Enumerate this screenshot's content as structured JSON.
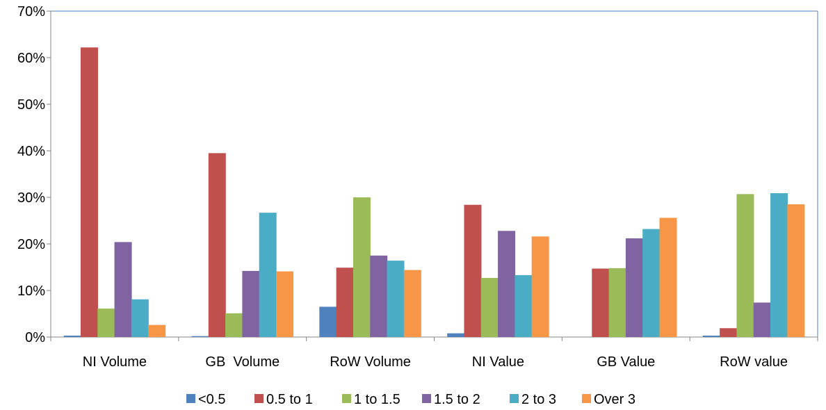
{
  "chart_data": {
    "type": "bar",
    "categories": [
      "NI Volume",
      "GB  Volume",
      "RoW Volume",
      "NI Value",
      "GB Value",
      "RoW value"
    ],
    "y_tick_labels": [
      "0%",
      "10%",
      "20%",
      "30%",
      "40%",
      "50%",
      "60%",
      "70%"
    ],
    "y_ticks": [
      0,
      10,
      20,
      30,
      40,
      50,
      60,
      70
    ],
    "ylim": [
      0,
      70
    ],
    "y_unit": "%",
    "grid": false,
    "legend_position": "bottom",
    "series": [
      {
        "name": "<0.5",
        "color": "#4F81BD",
        "values": [
          0.3,
          0.2,
          6.5,
          0.8,
          0.0,
          0.3
        ]
      },
      {
        "name": "0.5 to 1",
        "color": "#C0504D",
        "values": [
          62.2,
          39.5,
          14.9,
          28.4,
          14.7,
          1.9
        ]
      },
      {
        "name": "1 to 1.5",
        "color": "#9BBB59",
        "values": [
          6.1,
          5.1,
          30.0,
          12.7,
          14.8,
          30.7
        ]
      },
      {
        "name": "1.5 to 2",
        "color": "#8064A2",
        "values": [
          20.4,
          14.2,
          17.5,
          22.8,
          21.2,
          7.4
        ]
      },
      {
        "name": "2 to 3",
        "color": "#4BACC6",
        "values": [
          8.1,
          26.7,
          16.4,
          13.3,
          23.2,
          30.9
        ]
      },
      {
        "name": "Over 3",
        "color": "#F79646",
        "values": [
          2.6,
          14.1,
          14.4,
          21.6,
          25.6,
          28.5
        ]
      }
    ]
  }
}
